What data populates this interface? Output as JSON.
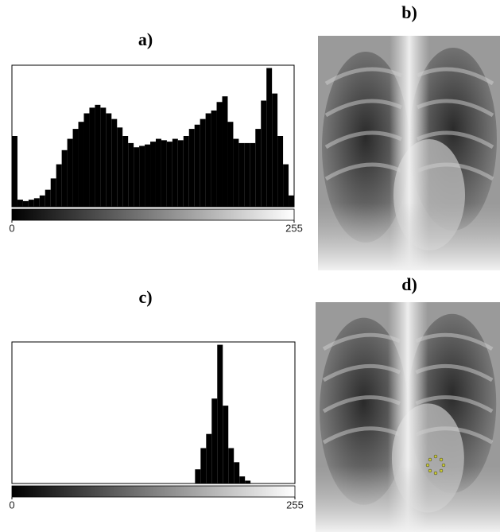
{
  "chart_data": [
    {
      "type": "histogram",
      "title": "a)",
      "color": "#000000",
      "bins": [
        0,
        5,
        10,
        15,
        20,
        25,
        30,
        35,
        40,
        45,
        50,
        55,
        60,
        65,
        70,
        75,
        80,
        85,
        90,
        95,
        100,
        105,
        110,
        115,
        120,
        125,
        130,
        135,
        140,
        145,
        150,
        155,
        160,
        165,
        170,
        175,
        180,
        185,
        190,
        195,
        200,
        205,
        210,
        215,
        220,
        225,
        230,
        235,
        240,
        245,
        250,
        255
      ],
      "values": [
        50,
        5,
        4,
        5,
        6,
        8,
        12,
        20,
        30,
        40,
        48,
        55,
        60,
        66,
        70,
        72,
        70,
        66,
        62,
        56,
        50,
        45,
        42,
        43,
        44,
        46,
        48,
        47,
        46,
        48,
        47,
        50,
        55,
        58,
        62,
        66,
        68,
        74,
        78,
        60,
        48,
        45,
        45,
        45,
        55,
        75,
        98,
        80,
        50,
        30,
        8
      ],
      "xlim": [
        0,
        255
      ],
      "xticks": [
        0,
        255
      ],
      "ylim": [
        0,
        100
      ]
    },
    {
      "type": "histogram",
      "title": "c)",
      "color": "#000000",
      "bins": [
        0,
        5,
        10,
        15,
        20,
        25,
        30,
        35,
        40,
        45,
        50,
        55,
        60,
        65,
        70,
        75,
        80,
        85,
        90,
        95,
        100,
        105,
        110,
        115,
        120,
        125,
        130,
        135,
        140,
        145,
        150,
        155,
        160,
        165,
        170,
        175,
        180,
        185,
        190,
        195,
        200,
        205,
        210,
        215,
        220,
        225,
        230,
        235,
        240,
        245,
        250,
        255
      ],
      "values": [
        0,
        0,
        0,
        0,
        0,
        0,
        0,
        0,
        0,
        0,
        0,
        0,
        0,
        0,
        0,
        0,
        0,
        0,
        0,
        0,
        0,
        0,
        0,
        0,
        0,
        0,
        0,
        0,
        0,
        0,
        0,
        0,
        0,
        10,
        25,
        35,
        60,
        98,
        55,
        25,
        15,
        5,
        2,
        0,
        0,
        0,
        0,
        0,
        0,
        0,
        0
      ],
      "xlim": [
        0,
        255
      ],
      "xticks": [
        0,
        255
      ],
      "ylim": [
        0,
        100
      ]
    }
  ],
  "images": [
    {
      "label": "b)"
    },
    {
      "label": "d)"
    }
  ]
}
